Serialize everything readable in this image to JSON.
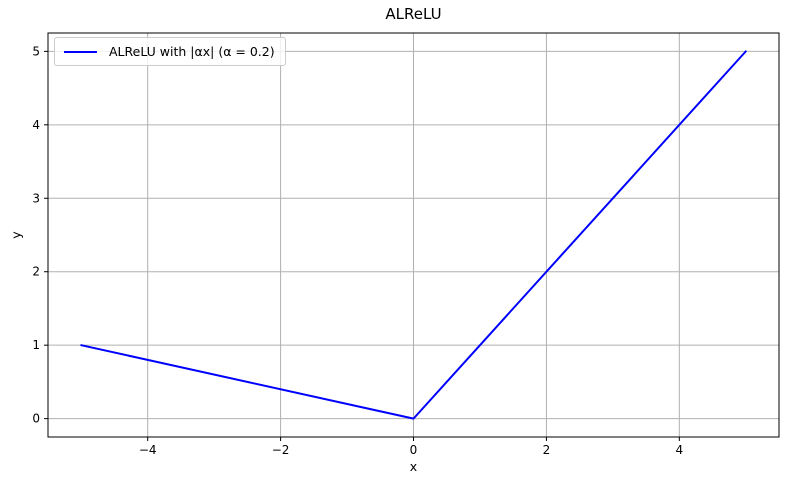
{
  "chart_data": {
    "type": "line",
    "title": "ALReLU",
    "xlabel": "x",
    "ylabel": "y",
    "xlim": [
      -5.5,
      5.5
    ],
    "ylim": [
      -0.25,
      5.25
    ],
    "xticks": {
      "values": [
        -4,
        -2,
        0,
        2,
        4
      ],
      "labels": [
        "−4",
        "−2",
        "0",
        "2",
        "4"
      ]
    },
    "yticks": {
      "values": [
        0,
        1,
        2,
        3,
        4,
        5
      ],
      "labels": [
        "0",
        "1",
        "2",
        "3",
        "4",
        "5"
      ]
    },
    "grid": true,
    "grid_color": "#b0b0b0",
    "axis_color": "#000000",
    "text_color": "#000000",
    "tick_label_size": 12,
    "legend": {
      "position": "upper left",
      "entries": [
        {
          "label": "ALReLU with |αx| (α = 0.2)",
          "color": "#0000ff"
        }
      ]
    },
    "series": [
      {
        "name": "ALReLU with |αx| (α = 0.2)",
        "color": "#0000ff",
        "line_width": 2,
        "x": [
          -5,
          0,
          5
        ],
        "y": [
          1,
          0,
          5
        ]
      }
    ]
  }
}
